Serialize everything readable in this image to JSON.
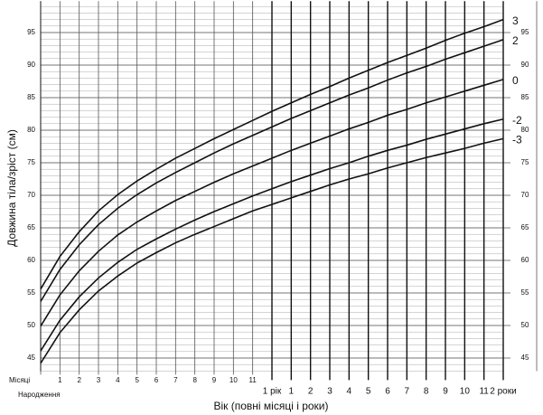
{
  "chart_data": {
    "type": "line",
    "y_label": "Довжина тіла/зріст (см)",
    "x_label": "Вік (повні місяці і роки)",
    "x_unit_label": "Місяці",
    "x": [
      0,
      1,
      2,
      3,
      4,
      5,
      6,
      7,
      8,
      9,
      10,
      11,
      12,
      13,
      14,
      15,
      16,
      17,
      18,
      19,
      20,
      21,
      22,
      23,
      24
    ],
    "xlim": [
      0,
      24
    ],
    "xticks": [
      {
        "value": 0,
        "label": "Народження"
      },
      1,
      2,
      3,
      4,
      5,
      6,
      7,
      8,
      9,
      10,
      11,
      {
        "value": 12,
        "label": "1 рік"
      },
      {
        "value": 13,
        "label": "1"
      },
      {
        "value": 14,
        "label": "2"
      },
      {
        "value": 15,
        "label": "3"
      },
      {
        "value": 16,
        "label": "4"
      },
      {
        "value": 17,
        "label": "5"
      },
      {
        "value": 18,
        "label": "6"
      },
      {
        "value": 19,
        "label": "7"
      },
      {
        "value": 20,
        "label": "8"
      },
      {
        "value": 21,
        "label": "9"
      },
      {
        "value": 22,
        "label": "10"
      },
      {
        "value": 23,
        "label": "11"
      },
      {
        "value": 24,
        "label": "2 роки"
      }
    ],
    "ylim": [
      43,
      99
    ],
    "yticks": [
      45,
      50,
      55,
      60,
      65,
      70,
      75,
      80,
      85,
      90,
      95
    ],
    "grid": true,
    "minor_grid": true,
    "series": [
      {
        "name": "3",
        "color": "#111111",
        "values": [
          55.6,
          60.6,
          64.4,
          67.6,
          70.1,
          72.2,
          74.0,
          75.7,
          77.2,
          78.7,
          80.1,
          81.5,
          82.9,
          84.2,
          85.5,
          86.7,
          88.0,
          89.2,
          90.4,
          91.5,
          92.6,
          93.8,
          94.9,
          95.9,
          97.0
        ]
      },
      {
        "name": "2",
        "color": "#111111",
        "values": [
          53.7,
          58.6,
          62.4,
          65.5,
          68.0,
          70.1,
          71.9,
          73.5,
          75.0,
          76.5,
          77.9,
          79.2,
          80.5,
          81.8,
          83.0,
          84.2,
          85.4,
          86.5,
          87.7,
          88.8,
          89.8,
          90.9,
          91.9,
          92.9,
          93.9
        ]
      },
      {
        "name": "0",
        "color": "#111111",
        "values": [
          49.9,
          54.7,
          58.4,
          61.4,
          63.9,
          65.9,
          67.6,
          69.2,
          70.6,
          72.0,
          73.3,
          74.5,
          75.7,
          76.9,
          78.0,
          79.1,
          80.2,
          81.2,
          82.3,
          83.2,
          84.2,
          85.1,
          86.0,
          86.9,
          87.8
        ]
      },
      {
        "name": "-2",
        "color": "#111111",
        "values": [
          46.1,
          50.8,
          54.4,
          57.3,
          59.7,
          61.7,
          63.3,
          64.8,
          66.2,
          67.5,
          68.7,
          69.9,
          71.0,
          72.1,
          73.1,
          74.1,
          75.0,
          76.0,
          76.9,
          77.7,
          78.6,
          79.4,
          80.2,
          81.0,
          81.7
        ]
      },
      {
        "name": "-3",
        "color": "#111111",
        "values": [
          44.2,
          48.9,
          52.4,
          55.3,
          57.6,
          59.6,
          61.2,
          62.7,
          64.0,
          65.2,
          66.4,
          67.6,
          68.6,
          69.6,
          70.6,
          71.6,
          72.5,
          73.3,
          74.2,
          75.0,
          75.8,
          76.5,
          77.2,
          78.0,
          78.7
        ]
      }
    ]
  }
}
